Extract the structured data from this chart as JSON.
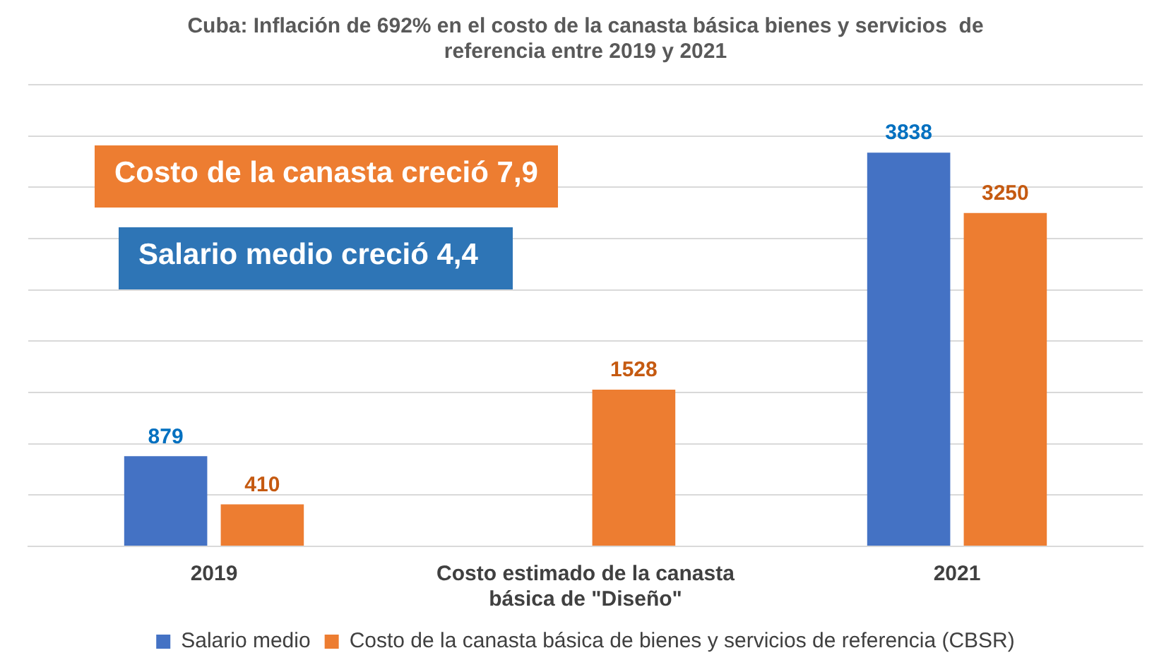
{
  "chart_data": {
    "type": "bar",
    "title": "Cuba: Inflación de 692% en el costo de la canasta básica bienes y servicios  de referencia entre 2019 y 2021",
    "categories": [
      "2019",
      "Costo estimado de la canasta básica de \"Diseño\"",
      "2021"
    ],
    "series": [
      {
        "name": "Salario medio",
        "color": "#4472c4",
        "values": [
          879,
          null,
          3838
        ]
      },
      {
        "name": "Costo de la canasta básica de bienes y servicios de referencia (CBSR)",
        "color": "#ed7d31",
        "values": [
          410,
          1528,
          3250
        ]
      }
    ],
    "ylim": [
      0,
      4500
    ],
    "yticks": [
      {
        "value": 0,
        "label": null
      },
      {
        "value": 500,
        "label": null
      },
      {
        "value": 1000,
        "label": null
      },
      {
        "value": 1500,
        "label": null
      },
      {
        "value": 2000,
        "label": null
      },
      {
        "value": 2500,
        "label": null
      },
      {
        "value": 3000,
        "label": null
      },
      {
        "value": 3500,
        "label": null
      },
      {
        "value": 4000,
        "label": null
      },
      {
        "value": 4500,
        "label": null
      }
    ],
    "tick_labels": "x",
    "grid": "y",
    "legend": "bottom",
    "data_labels": true,
    "annotations": [
      "Costo de la canasta creció 7,9",
      "Salario medio creció 4,4"
    ]
  }
}
